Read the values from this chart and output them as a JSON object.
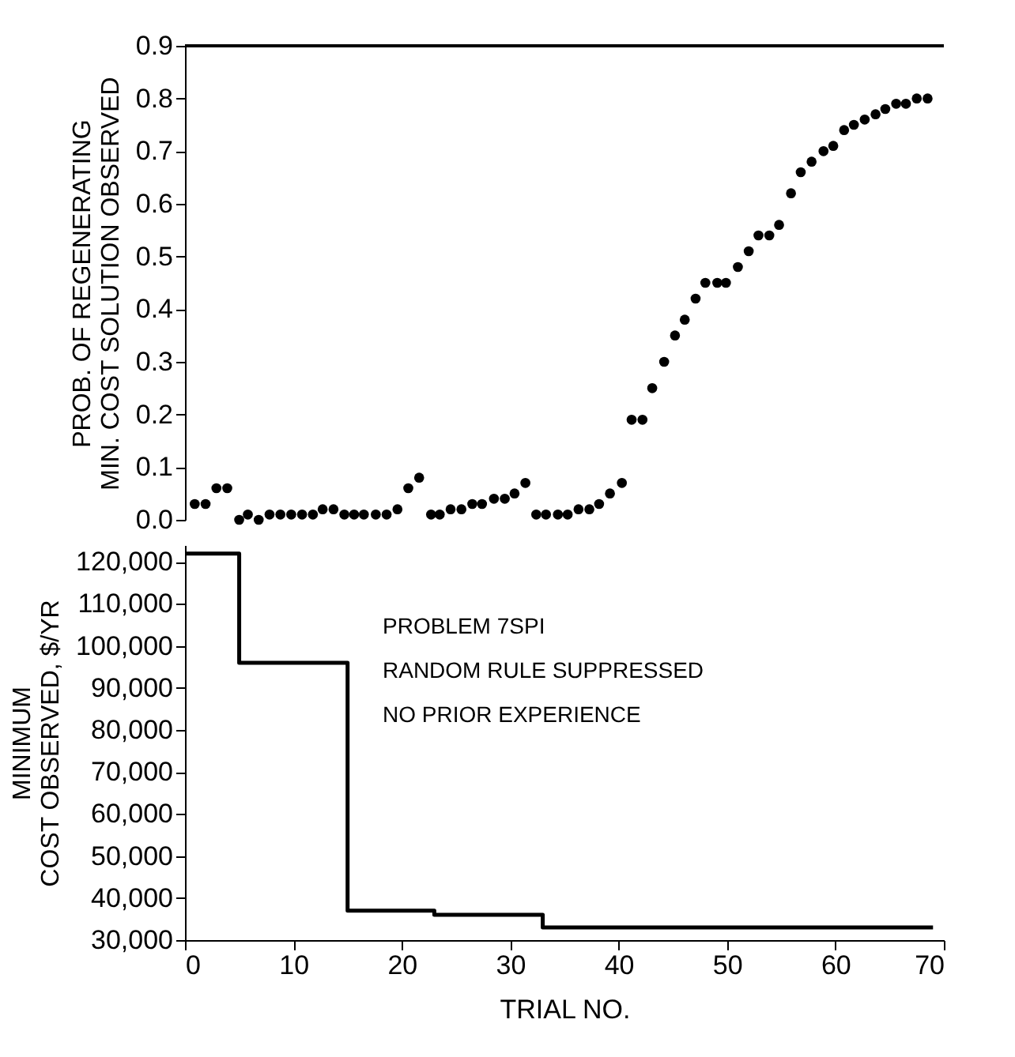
{
  "chart_data": [
    {
      "type": "scatter",
      "ylabel": "PROB. OF REGENERATING\nMIN. COST SOLUTION OBSERVED",
      "marker": "circle",
      "tick_labels": "y",
      "grid": false,
      "xlim": [
        0,
        70
      ],
      "ylim": [
        0,
        0.9
      ],
      "yticks": [
        {
          "value": 0,
          "label": "0.0"
        },
        0.1,
        0.2,
        0.3,
        0.4,
        0.5,
        0.6,
        0.7,
        0.8,
        0.9
      ],
      "series": [
        {
          "color": "#000000",
          "x": [
            0.9,
            1.9,
            2.9,
            3.9,
            5.0,
            5.8,
            6.8,
            7.8,
            8.8,
            9.8,
            10.8,
            11.8,
            12.7,
            13.7,
            14.7,
            15.6,
            16.5,
            17.6,
            18.6,
            19.6,
            20.6,
            21.6,
            22.7,
            23.5,
            24.5,
            25.5,
            26.5,
            27.4,
            28.5,
            29.5,
            30.4,
            31.4,
            32.4,
            33.3,
            34.4,
            35.3,
            36.3,
            37.3,
            38.2,
            39.2,
            40.3,
            41.2,
            42.2,
            43.1,
            44.2,
            45.2,
            46.1,
            47.1,
            48.0,
            49.1,
            49.9,
            51.0,
            52.0,
            52.9,
            53.9,
            54.8,
            55.9,
            56.8,
            57.8,
            58.9,
            59.8,
            60.8,
            61.7,
            62.7,
            63.7,
            64.6,
            65.6,
            66.5,
            67.5,
            68.5
          ],
          "values": [
            0.03,
            0.03,
            0.06,
            0.06,
            0.0,
            0.01,
            0.0,
            0.01,
            0.01,
            0.01,
            0.01,
            0.01,
            0.02,
            0.02,
            0.01,
            0.01,
            0.01,
            0.01,
            0.01,
            0.02,
            0.06,
            0.08,
            0.01,
            0.01,
            0.02,
            0.02,
            0.03,
            0.03,
            0.04,
            0.04,
            0.05,
            0.07,
            0.01,
            0.01,
            0.01,
            0.01,
            0.02,
            0.02,
            0.03,
            0.05,
            0.07,
            0.19,
            0.19,
            0.25,
            0.3,
            0.35,
            0.38,
            0.42,
            0.45,
            0.45,
            0.45,
            0.48,
            0.51,
            0.54,
            0.54,
            0.56,
            0.62,
            0.66,
            0.68,
            0.7,
            0.71,
            0.74,
            0.75,
            0.76,
            0.77,
            0.78,
            0.79,
            0.79,
            0.8,
            0.8
          ]
        }
      ]
    },
    {
      "type": "step",
      "xlabel": "TRIAL NO.",
      "ylabel": "MINIMUM\nCOST OBSERVED, $/YR",
      "marker": "none",
      "grid": false,
      "xlim": [
        0,
        70
      ],
      "xticks": [
        0,
        10,
        20,
        30,
        40,
        50,
        60,
        70
      ],
      "ylim": [
        30000,
        124000
      ],
      "yticks": [
        {
          "value": 30000,
          "label": "30,000"
        },
        {
          "value": 40000,
          "label": "40,000"
        },
        {
          "value": 50000,
          "label": "50,000"
        },
        {
          "value": 60000,
          "label": "60,000"
        },
        {
          "value": 70000,
          "label": "70,000"
        },
        {
          "value": 80000,
          "label": "80,000"
        },
        {
          "value": 90000,
          "label": "90,000"
        },
        {
          "value": 100000,
          "label": "100,000"
        },
        {
          "value": 110000,
          "label": "110,000"
        },
        {
          "value": 120000,
          "label": "120,000"
        }
      ],
      "annotations": [
        "PROBLEM 7SPI",
        "RANDOM RULE SUPPRESSED",
        "NO PRIOR EXPERIENCE"
      ],
      "series": [
        {
          "color": "#000000",
          "x": [
            0,
            5,
            15,
            23,
            33,
            69
          ],
          "values": [
            122000,
            96000,
            37000,
            36000,
            33000,
            33000
          ]
        }
      ]
    }
  ]
}
